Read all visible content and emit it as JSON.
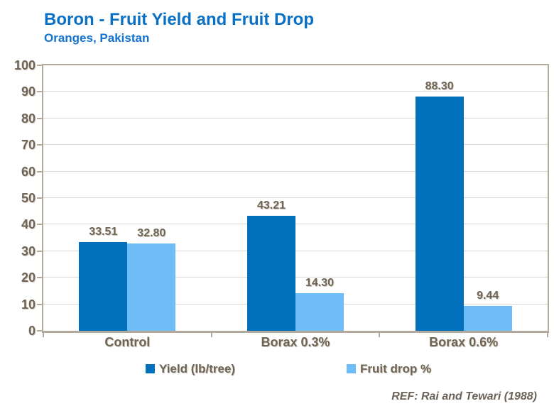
{
  "header": {
    "title": "Boron - Fruit Yield and Fruit Drop",
    "subtitle": "Oranges, Pakistan"
  },
  "footer": {
    "reference": "REF: Rai and Tewari (1988)"
  },
  "colors": {
    "title_blue": "#0a70c6",
    "subtitle_blue": "#1273cd",
    "axis": "#b2a89c",
    "gridline": "#dbd7d1",
    "tick_label": "#6f6557",
    "label_shadow": "#d2cabf",
    "reference": "#6b6259"
  },
  "chart_data": {
    "type": "bar",
    "title": "Boron - Fruit Yield and Fruit Drop",
    "subtitle": "Oranges, Pakistan",
    "categories": [
      "Control",
      "Borax 0.3%",
      "Borax 0.6%"
    ],
    "series": [
      {
        "name": "Yield (lb/tree)",
        "color": "#0271bd",
        "values": [
          33.51,
          43.21,
          88.3
        ]
      },
      {
        "name": "Fruit drop %",
        "color": "#6fbdf8",
        "values": [
          32.8,
          14.3,
          9.44
        ]
      }
    ],
    "xlabel": "",
    "ylabel": "",
    "ylim": [
      0,
      100
    ],
    "ytick_step": 10,
    "grid": true,
    "value_labels_decimals": 2,
    "legend_position": "bottom",
    "annotation": "REF: Rai and Tewari (1988)"
  }
}
